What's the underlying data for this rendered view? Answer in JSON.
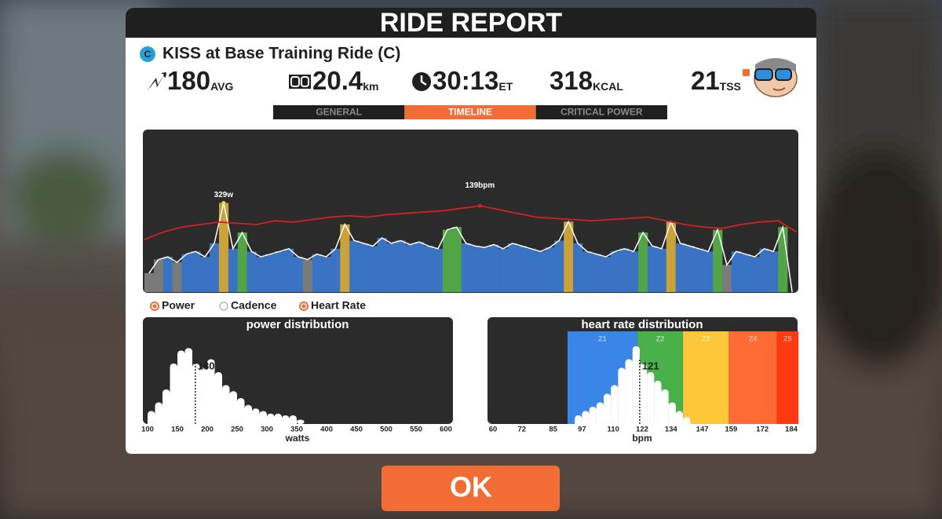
{
  "header": {
    "title": "RIDE REPORT"
  },
  "ride": {
    "category": "C",
    "name": "KISS at Base Training Ride (C)"
  },
  "stats": {
    "power": {
      "value": 180,
      "unit": "AVG"
    },
    "distance": {
      "value": 20.4,
      "unit": "km"
    },
    "time": {
      "value": "30:13",
      "unit": "ET"
    },
    "calories": {
      "value": 318,
      "unit": "KCAL"
    },
    "tss": {
      "value": 21,
      "unit": "TSS"
    }
  },
  "tabs": {
    "items": [
      "GENERAL",
      "TIMELINE",
      "CRITICAL POWER"
    ],
    "active": 1,
    "active_color": "#f26c35"
  },
  "timeline": {
    "power": {
      "values": [
        70,
        120,
        130,
        110,
        140,
        150,
        130,
        180,
        329,
        160,
        220,
        150,
        130,
        140,
        150,
        160,
        130,
        120,
        140,
        130,
        160,
        250,
        190,
        180,
        170,
        200,
        180,
        190,
        175,
        185,
        170,
        160,
        230,
        240,
        180,
        170,
        165,
        175,
        160,
        180,
        170,
        160,
        150,
        165,
        190,
        260,
        180,
        150,
        140,
        130,
        150,
        160,
        150,
        220,
        170,
        160,
        260,
        180,
        170,
        160,
        150,
        230,
        100,
        150,
        140,
        130,
        160,
        150,
        240,
        0
      ],
      "ylim": [
        0,
        600
      ],
      "line_color": "#ffffff",
      "zones": [
        {
          "to": 120,
          "color": "#7a7a7a"
        },
        {
          "to": 200,
          "color": "#3a73c4"
        },
        {
          "to": 240,
          "color": "#52a447"
        },
        {
          "to": 600,
          "color": "#c9a23a"
        }
      ],
      "peak_label": "329w",
      "peak_color": "#f0e050"
    },
    "heart_rate": {
      "values": [
        112,
        118,
        122,
        124,
        126,
        125,
        124,
        127,
        126,
        128,
        130,
        131,
        130,
        132,
        133,
        134,
        135,
        137,
        139,
        136,
        133,
        130,
        129,
        128,
        127,
        128,
        129,
        130,
        127,
        124,
        122,
        121,
        124,
        126,
        127,
        118
      ],
      "ylim": [
        70,
        200
      ],
      "color": "#d42020",
      "peak_label": "139bpm"
    },
    "legend": [
      {
        "name": "Power",
        "color": "#f26c35"
      },
      {
        "name": "Cadence",
        "color": "#ffffff"
      },
      {
        "name": "Heart Rate",
        "color": "#f26c35"
      }
    ]
  },
  "power_distribution": {
    "title": "power distribution",
    "xlabel": "watts",
    "xlim": [
      100,
      600
    ],
    "xticks": [
      100,
      150,
      200,
      250,
      300,
      350,
      400,
      450,
      500,
      550,
      600
    ],
    "ylim": [
      0,
      100
    ],
    "bins": [
      100,
      112.5,
      125,
      137.5,
      150,
      162.5,
      175,
      187.5,
      200,
      212.5,
      225,
      237.5,
      250,
      262.5,
      275,
      287.5,
      300,
      312.5,
      325,
      337.5,
      350,
      362.5
    ],
    "counts": [
      15,
      25,
      40,
      70,
      85,
      88,
      70,
      65,
      75,
      60,
      45,
      38,
      30,
      22,
      18,
      15,
      12,
      12,
      10,
      10,
      5
    ],
    "average": 180,
    "color": "#ffffff"
  },
  "heart_rate_distribution": {
    "title": "heart rate distribution",
    "xlabel": "bpm",
    "xlim": [
      60,
      184
    ],
    "xticks": [
      60,
      72,
      85,
      97,
      110,
      122,
      134,
      147,
      159,
      172,
      184
    ],
    "ylim": [
      0,
      100
    ],
    "bins": [
      94,
      97,
      100,
      103,
      106,
      109,
      112,
      115,
      118,
      121,
      124,
      127,
      130,
      133,
      136,
      139,
      142
    ],
    "counts": [
      10,
      15,
      20,
      25,
      35,
      45,
      65,
      75,
      90,
      70,
      60,
      50,
      40,
      25,
      15,
      8
    ],
    "average": 121,
    "color": "#ffffff",
    "zones": [
      {
        "name": "Z1",
        "from": 91,
        "to": 120,
        "color": "#3a86e8"
      },
      {
        "name": "Z2",
        "from": 120,
        "to": 139,
        "color": "#49b04a"
      },
      {
        "name": "Z3",
        "from": 139,
        "to": 158,
        "color": "#fdc73a"
      },
      {
        "name": "Z4",
        "from": 158,
        "to": 178,
        "color": "#ff6b35"
      },
      {
        "name": "Z5",
        "from": 178,
        "to": 187,
        "color": "#ff3a10"
      }
    ]
  },
  "button": {
    "label": "OK"
  }
}
